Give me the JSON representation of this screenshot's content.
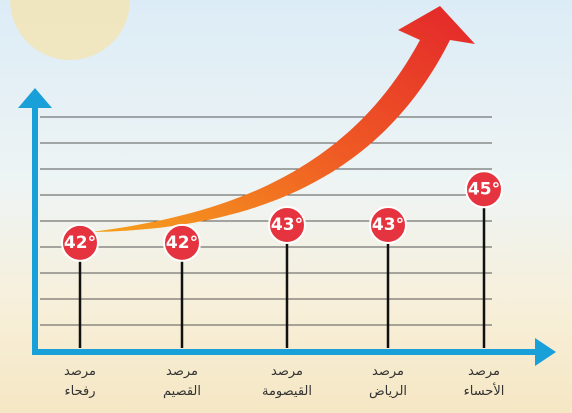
{
  "chart_data": {
    "type": "lollipop",
    "categories": [
      "مرصد\nرفحاء",
      "مرصد\nالقصيم",
      "مرصد\nالقيصومة",
      "مرصد\nالرياض",
      "مرصد\nالأحساء"
    ],
    "values": [
      42,
      42,
      43,
      43,
      45
    ],
    "value_labels": [
      "42°",
      "42°",
      "43°",
      "43°",
      "45°"
    ],
    "color": "#e5343f",
    "ylim": [
      36,
      50
    ]
  }
}
